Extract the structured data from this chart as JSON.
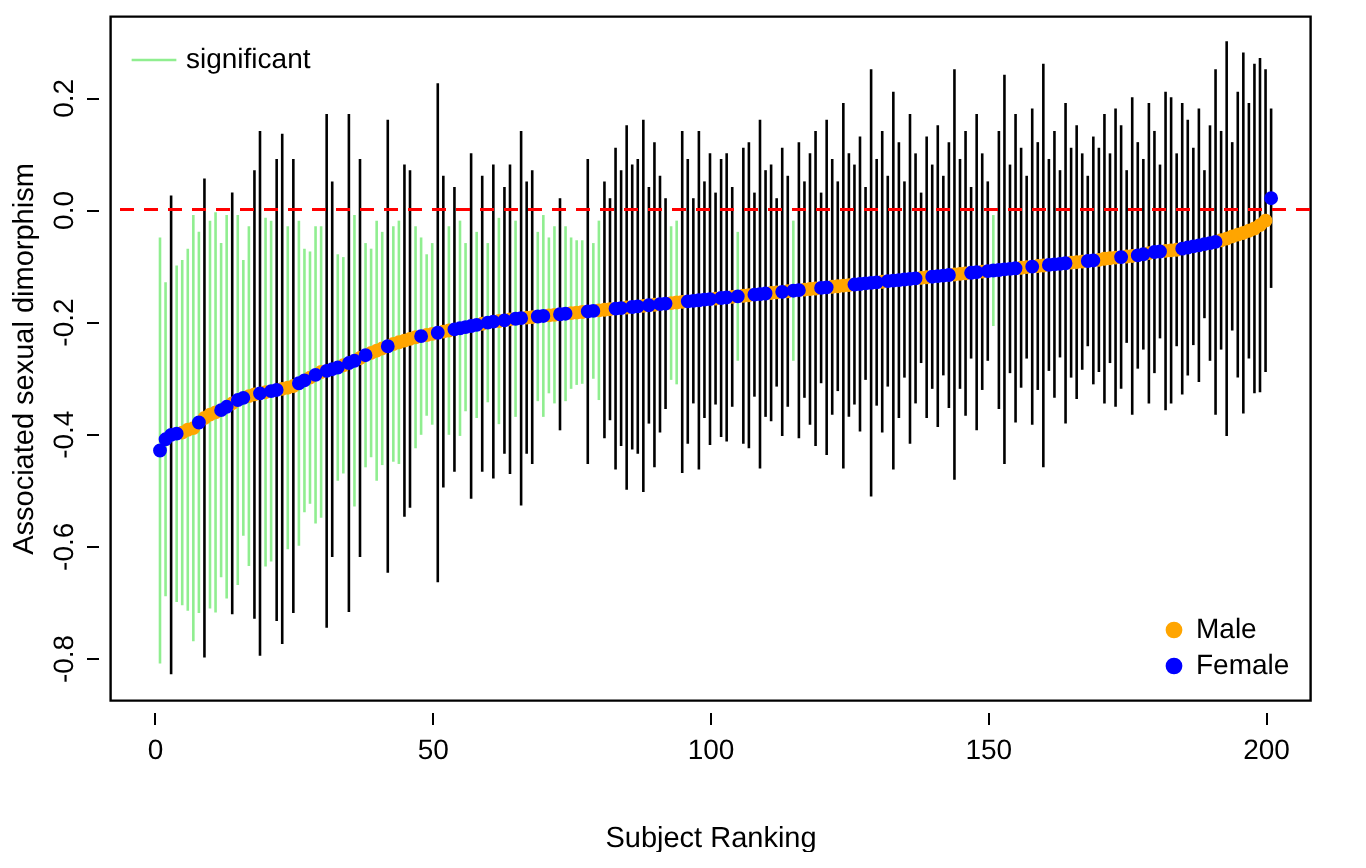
{
  "chart_data": {
    "type": "scatter",
    "xlabel": "Subject Ranking",
    "ylabel": "Associated sexual dimorphism",
    "xlim": [
      -8,
      208
    ],
    "ylim": [
      -0.875,
      0.345
    ],
    "xticks": [
      0,
      50,
      100,
      150,
      200
    ],
    "yticks": [
      -0.8,
      -0.6,
      -0.4,
      -0.2,
      {
        "value": 0,
        "label": "0.0"
      },
      0.2
    ],
    "marker": "circle",
    "legend": "bottom right",
    "ref_lines": [
      {
        "axis": "y",
        "value": 0,
        "color": "#ff0000",
        "line_style": "dashed"
      }
    ],
    "series": [
      {
        "name": "significant",
        "type": "bar",
        "color": "#90ee90",
        "x": [
          1,
          2,
          4,
          5,
          6,
          7,
          8,
          10,
          11,
          12,
          13,
          15,
          16,
          17,
          20,
          21,
          24,
          26,
          27,
          28,
          29,
          30,
          33,
          34,
          36,
          38,
          39,
          40,
          41,
          43,
          44,
          47,
          48,
          49,
          50,
          53,
          55,
          56,
          58,
          60,
          62,
          65,
          69,
          70,
          71,
          72,
          74,
          75,
          76,
          77,
          79,
          80,
          93,
          94,
          105,
          115,
          151
        ],
        "base": [
          -0.81,
          -0.69,
          -0.7,
          -0.706,
          -0.716,
          -0.77,
          -0.72,
          -0.712,
          -0.719,
          -0.656,
          -0.694,
          -0.67,
          -0.582,
          -0.636,
          -0.637,
          -0.628,
          -0.606,
          -0.6,
          -0.54,
          -0.525,
          -0.56,
          -0.55,
          -0.484,
          -0.471,
          -0.53,
          -0.46,
          -0.442,
          -0.484,
          -0.456,
          -0.45,
          -0.454,
          -0.426,
          -0.402,
          -0.368,
          -0.384,
          -0.402,
          -0.404,
          -0.36,
          -0.372,
          -0.344,
          -0.383,
          -0.37,
          -0.342,
          -0.37,
          -0.328,
          -0.346,
          -0.342,
          -0.32,
          -0.313,
          -0.311,
          -0.302,
          -0.34,
          -0.304,
          -0.312,
          -0.27,
          -0.27,
          -0.208
        ],
        "values": [
          0.76,
          0.56,
          0.6,
          0.616,
          0.646,
          0.76,
          0.68,
          0.692,
          0.714,
          0.596,
          0.684,
          0.66,
          0.492,
          0.606,
          0.622,
          0.608,
          0.576,
          0.58,
          0.47,
          0.45,
          0.53,
          0.52,
          0.404,
          0.386,
          0.52,
          0.4,
          0.372,
          0.464,
          0.416,
          0.42,
          0.434,
          0.396,
          0.352,
          0.288,
          0.324,
          0.372,
          0.384,
          0.3,
          0.332,
          0.284,
          0.368,
          0.35,
          0.302,
          0.36,
          0.278,
          0.316,
          0.312,
          0.27,
          0.258,
          0.256,
          0.242,
          0.32,
          0.274,
          0.292,
          0.23,
          0.25,
          0.198
        ]
      },
      {
        "type": "bar",
        "color": "#000000",
        "x": [
          3,
          9,
          14,
          18,
          19,
          22,
          23,
          25,
          31,
          32,
          35,
          37,
          42,
          45,
          46,
          51,
          52,
          54,
          57,
          59,
          61,
          63,
          64,
          66,
          67,
          68,
          73,
          78,
          81,
          82,
          83,
          84,
          85,
          86,
          87,
          88,
          89,
          90,
          91,
          92,
          95,
          96,
          97,
          98,
          99,
          100,
          101,
          102,
          103,
          104,
          106,
          107,
          108,
          109,
          110,
          111,
          112,
          113,
          114,
          116,
          117,
          118,
          119,
          120,
          121,
          122,
          123,
          124,
          125,
          126,
          127,
          128,
          129,
          130,
          131,
          132,
          133,
          134,
          135,
          136,
          137,
          138,
          139,
          140,
          141,
          142,
          143,
          144,
          145,
          146,
          147,
          148,
          149,
          150,
          152,
          153,
          154,
          155,
          156,
          157,
          158,
          159,
          160,
          161,
          162,
          163,
          164,
          165,
          166,
          167,
          168,
          169,
          170,
          171,
          172,
          173,
          174,
          175,
          176,
          177,
          178,
          179,
          180,
          181,
          182,
          183,
          184,
          185,
          186,
          187,
          188,
          189,
          190,
          191,
          192,
          193,
          194,
          195,
          196,
          197,
          198,
          199,
          200,
          201
        ],
        "base": [
          -0.829,
          -0.799,
          -0.722,
          -0.73,
          -0.796,
          -0.734,
          -0.775,
          -0.72,
          -0.746,
          -0.62,
          -0.718,
          -0.62,
          -0.648,
          -0.548,
          -0.532,
          -0.665,
          -0.496,
          -0.468,
          -0.516,
          -0.468,
          -0.48,
          -0.436,
          -0.472,
          -0.528,
          -0.436,
          -0.454,
          -0.394,
          -0.454,
          -0.408,
          -0.376,
          -0.464,
          -0.422,
          -0.5,
          -0.428,
          -0.436,
          -0.504,
          -0.382,
          -0.46,
          -0.398,
          -0.356,
          -0.47,
          -0.418,
          -0.346,
          -0.464,
          -0.372,
          -0.42,
          -0.348,
          -0.406,
          -0.414,
          -0.352,
          -0.418,
          -0.426,
          -0.334,
          -0.462,
          -0.37,
          -0.378,
          -0.316,
          -0.404,
          -0.352,
          -0.408,
          -0.336,
          -0.384,
          -0.422,
          -0.31,
          -0.438,
          -0.366,
          -0.324,
          -0.462,
          -0.37,
          -0.348,
          -0.396,
          -0.304,
          -0.512,
          -0.35,
          -0.398,
          -0.316,
          -0.464,
          -0.372,
          -0.3,
          -0.418,
          -0.346,
          -0.274,
          -0.372,
          -0.32,
          -0.388,
          -0.296,
          -0.354,
          -0.482,
          -0.32,
          -0.368,
          -0.266,
          -0.394,
          -0.322,
          -0.27,
          -0.356,
          -0.454,
          -0.292,
          -0.38,
          -0.318,
          -0.266,
          -0.384,
          -0.322,
          -0.46,
          -0.288,
          -0.336,
          -0.264,
          -0.382,
          -0.3,
          -0.338,
          -0.286,
          -0.244,
          -0.312,
          -0.29,
          -0.346,
          -0.274,
          -0.352,
          -0.32,
          -0.238,
          -0.366,
          -0.284,
          -0.25,
          -0.346,
          -0.292,
          -0.23,
          -0.358,
          -0.346,
          -0.244,
          -0.33,
          -0.296,
          -0.242,
          -0.308,
          -0.194,
          -0.27,
          -0.366,
          -0.25,
          -0.404,
          -0.216,
          -0.3,
          -0.364,
          -0.266,
          -0.328,
          -0.326,
          -0.29,
          -0.14
        ],
        "values": [
          0.854,
          0.854,
          0.752,
          0.8,
          0.936,
          0.824,
          0.91,
          0.81,
          0.916,
          0.67,
          0.888,
          0.71,
          0.808,
          0.628,
          0.602,
          0.89,
          0.556,
          0.508,
          0.616,
          0.528,
          0.56,
          0.476,
          0.552,
          0.668,
          0.486,
          0.524,
          0.414,
          0.544,
          0.458,
          0.396,
          0.574,
          0.492,
          0.65,
          0.508,
          0.526,
          0.664,
          0.422,
          0.58,
          0.458,
          0.376,
          0.61,
          0.508,
          0.366,
          0.604,
          0.422,
          0.52,
          0.378,
          0.496,
          0.514,
          0.392,
          0.528,
          0.546,
          0.364,
          0.622,
          0.44,
          0.458,
          0.336,
          0.514,
          0.412,
          0.528,
          0.386,
          0.484,
          0.562,
          0.34,
          0.598,
          0.456,
          0.374,
          0.652,
          0.47,
          0.428,
          0.526,
          0.344,
          0.762,
          0.44,
          0.538,
          0.376,
          0.674,
          0.492,
          0.35,
          0.588,
          0.446,
          0.304,
          0.502,
          0.4,
          0.538,
          0.356,
          0.474,
          0.732,
          0.41,
          0.508,
          0.306,
          0.564,
          0.422,
          0.32,
          0.496,
          0.694,
          0.372,
          0.55,
          0.428,
          0.326,
          0.564,
          0.442,
          0.72,
          0.378,
          0.476,
          0.334,
          0.572,
          0.41,
          0.488,
          0.386,
          0.304,
          0.442,
          0.4,
          0.516,
          0.374,
          0.532,
          0.47,
          0.308,
          0.566,
          0.404,
          0.34,
          0.536,
          0.432,
          0.31,
          0.568,
          0.546,
          0.344,
          0.52,
          0.456,
          0.352,
          0.488,
          0.264,
          0.42,
          0.616,
          0.39,
          0.704,
          0.336,
          0.51,
          0.644,
          0.456,
          0.588,
          0.596,
          0.54,
          0.32
        ]
      },
      {
        "name": "Male",
        "color": "#ffa500",
        "x": [
          5,
          6,
          7,
          9,
          10,
          11,
          14,
          17,
          18,
          20,
          23,
          24,
          25,
          28,
          30,
          34,
          37,
          39,
          40,
          41,
          43,
          44,
          45,
          46,
          47,
          49,
          50,
          52,
          53,
          59,
          62,
          64,
          67,
          68,
          71,
          72,
          75,
          76,
          77,
          80,
          81,
          82,
          85,
          88,
          90,
          93,
          94,
          95,
          101,
          104,
          106,
          107,
          111,
          112,
          114,
          117,
          118,
          119,
          122,
          123,
          124,
          125,
          131,
          138,
          139,
          144,
          145,
          146,
          149,
          156,
          157,
          159,
          160,
          165,
          166,
          167,
          170,
          171,
          172,
          173,
          175,
          176,
          179,
          182,
          183,
          184,
          192,
          193,
          194,
          195,
          196,
          197,
          198,
          199,
          200
        ],
        "values": [
          -0.398,
          -0.393,
          -0.39,
          -0.372,
          -0.366,
          -0.362,
          -0.346,
          -0.333,
          -0.33,
          -0.326,
          -0.32,
          -0.318,
          -0.315,
          -0.3,
          -0.29,
          -0.278,
          -0.265,
          -0.256,
          -0.252,
          -0.248,
          -0.24,
          -0.237,
          -0.234,
          -0.231,
          -0.228,
          -0.224,
          -0.222,
          -0.218,
          -0.216,
          -0.204,
          -0.199,
          -0.196,
          -0.193,
          -0.192,
          -0.189,
          -0.188,
          -0.185,
          -0.184,
          -0.183,
          -0.18,
          -0.179,
          -0.178,
          -0.175,
          -0.172,
          -0.17,
          -0.167,
          -0.166,
          -0.165,
          -0.159,
          -0.156,
          -0.154,
          -0.153,
          -0.149,
          -0.148,
          -0.146,
          -0.143,
          -0.142,
          -0.141,
          -0.138,
          -0.137,
          -0.136,
          -0.135,
          -0.129,
          -0.122,
          -0.121,
          -0.116,
          -0.115,
          -0.114,
          -0.111,
          -0.104,
          -0.103,
          -0.101,
          -0.1,
          -0.095,
          -0.094,
          -0.093,
          -0.09,
          -0.088,
          -0.087,
          -0.086,
          -0.084,
          -0.083,
          -0.078,
          -0.074,
          -0.073,
          -0.072,
          -0.055,
          -0.052,
          -0.048,
          -0.045,
          -0.042,
          -0.038,
          -0.034,
          -0.028,
          -0.02
        ]
      },
      {
        "name": "Female",
        "color": "#0000ff",
        "x": [
          1,
          2,
          3,
          4,
          8,
          12,
          13,
          15,
          16,
          19,
          21,
          22,
          26,
          27,
          29,
          31,
          32,
          33,
          35,
          36,
          38,
          42,
          48,
          51,
          54,
          55,
          56,
          57,
          58,
          60,
          61,
          63,
          65,
          66,
          69,
          70,
          73,
          74,
          78,
          79,
          83,
          84,
          86,
          87,
          89,
          91,
          92,
          96,
          97,
          98,
          99,
          100,
          102,
          103,
          105,
          108,
          109,
          110,
          113,
          115,
          116,
          120,
          121,
          126,
          127,
          128,
          129,
          130,
          132,
          133,
          134,
          135,
          136,
          137,
          140,
          141,
          142,
          143,
          147,
          148,
          150,
          151,
          152,
          153,
          154,
          155,
          158,
          161,
          162,
          163,
          164,
          168,
          169,
          174,
          177,
          178,
          180,
          181,
          185,
          186,
          187,
          188,
          189,
          190,
          191,
          201
        ],
        "values": [
          -0.43,
          -0.41,
          -0.402,
          -0.4,
          -0.38,
          -0.358,
          -0.352,
          -0.34,
          -0.336,
          -0.328,
          -0.324,
          -0.322,
          -0.31,
          -0.305,
          -0.295,
          -0.288,
          -0.285,
          -0.282,
          -0.274,
          -0.27,
          -0.26,
          -0.244,
          -0.226,
          -0.22,
          -0.214,
          -0.212,
          -0.21,
          -0.208,
          -0.206,
          -0.202,
          -0.2,
          -0.198,
          -0.195,
          -0.194,
          -0.191,
          -0.19,
          -0.187,
          -0.186,
          -0.182,
          -0.181,
          -0.177,
          -0.176,
          -0.174,
          -0.173,
          -0.171,
          -0.169,
          -0.168,
          -0.164,
          -0.163,
          -0.162,
          -0.161,
          -0.16,
          -0.158,
          -0.157,
          -0.155,
          -0.152,
          -0.151,
          -0.15,
          -0.147,
          -0.145,
          -0.144,
          -0.14,
          -0.139,
          -0.134,
          -0.133,
          -0.132,
          -0.131,
          -0.13,
          -0.128,
          -0.127,
          -0.126,
          -0.125,
          -0.124,
          -0.123,
          -0.12,
          -0.119,
          -0.118,
          -0.117,
          -0.113,
          -0.112,
          -0.11,
          -0.109,
          -0.108,
          -0.107,
          -0.106,
          -0.105,
          -0.102,
          -0.099,
          -0.098,
          -0.097,
          -0.096,
          -0.092,
          -0.091,
          -0.085,
          -0.082,
          -0.08,
          -0.076,
          -0.075,
          -0.07,
          -0.068,
          -0.066,
          -0.064,
          -0.062,
          -0.06,
          -0.058,
          0.02
        ]
      }
    ]
  }
}
